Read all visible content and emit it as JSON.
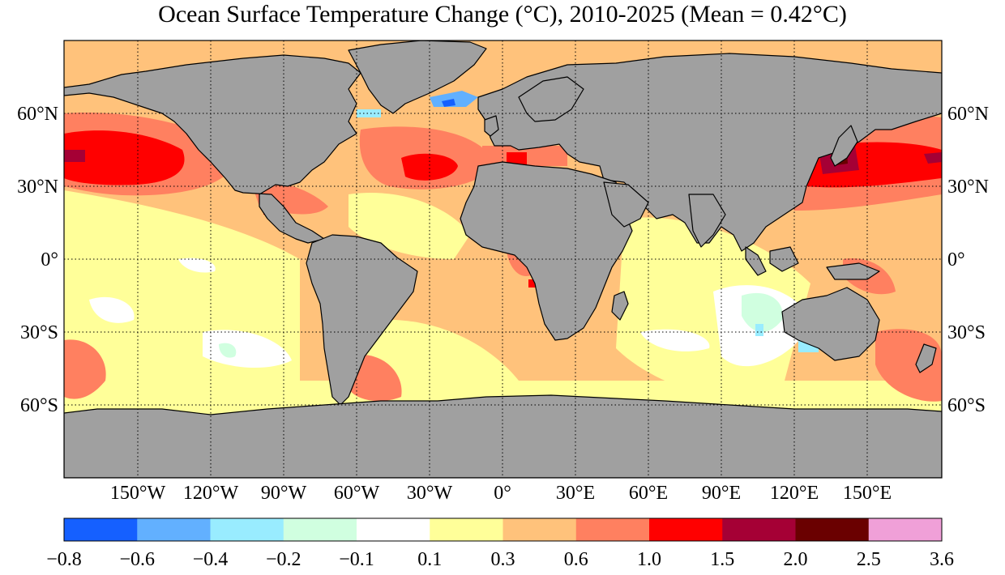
{
  "title": "Ocean Surface Temperature Change (°C), 2010-2025 (Mean = 0.42°C)",
  "map": {
    "projection": "equirectangular",
    "land_color": "#a0a0a0",
    "grid": "dotted",
    "lat_labels": [
      "60°N",
      "30°N",
      "0°",
      "30°S",
      "60°S"
    ],
    "lon_labels": [
      "150°W",
      "120°W",
      "90°W",
      "60°W",
      "30°W",
      "0°",
      "30°E",
      "60°E",
      "90°E",
      "120°E",
      "150°E"
    ]
  },
  "colorbar": {
    "ticks": [
      "−0.8",
      "−0.6",
      "−0.4",
      "−0.2",
      "−0.1",
      "0.1",
      "0.3",
      "0.6",
      "1.0",
      "1.5",
      "2.0",
      "2.5",
      "3.6"
    ],
    "colors": [
      "#1560ff",
      "#62b0ff",
      "#99ecff",
      "#d0ffe0",
      "#ffffff",
      "#ffff99",
      "#ffc27b",
      "#ff8060",
      "#ff0000",
      "#a50035",
      "#6a0000",
      "#f0a0d8"
    ]
  }
}
